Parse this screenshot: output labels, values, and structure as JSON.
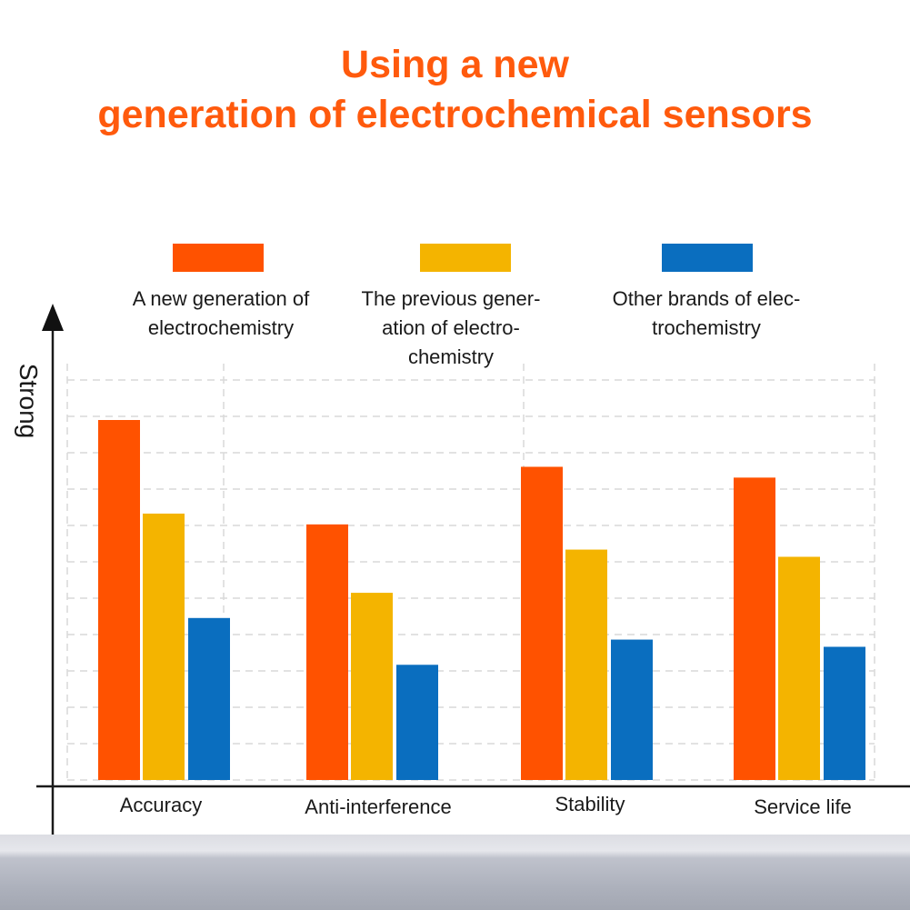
{
  "chart_data": {
    "type": "bar",
    "title": [
      "Using a new",
      "generation of electrochemical sensors"
    ],
    "ylabel": "Strong",
    "xlabel": "",
    "categories": [
      "Accuracy",
      "Anti-interference",
      "Stability",
      "Service life"
    ],
    "series": [
      {
        "name": [
          "A new generation of",
          "electrochemistry"
        ],
        "color": "#ff5200",
        "values": [
          10,
          7.1,
          8.7,
          8.4
        ]
      },
      {
        "name": [
          "The previous gener-",
          "ation of electro-",
          "chemistry"
        ],
        "color": "#f4b400",
        "values": [
          7.4,
          5.2,
          6.4,
          6.2
        ]
      },
      {
        "name": [
          "Other brands of elec-",
          "trochemistry"
        ],
        "color": "#0a6ebf",
        "values": [
          4.5,
          3.2,
          3.9,
          3.7
        ]
      }
    ],
    "ylim": [
      0,
      11
    ],
    "grid": true,
    "legend_position": "top"
  }
}
